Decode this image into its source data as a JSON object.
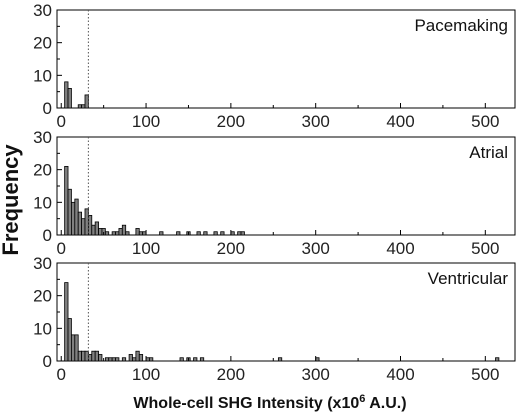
{
  "chart_data": {
    "type": "bar",
    "ylabel": "Frequency",
    "xlabel_text": "Whole-cell SHG Intensity (x10",
    "xlabel_superscript": "6",
    "xlabel_suffix": " A.U.)",
    "xlim": [
      -5,
      535
    ],
    "ylim": [
      0,
      30
    ],
    "x_ticks": [
      "0",
      "100",
      "200",
      "300",
      "400",
      "500"
    ],
    "y_ticks": [
      "0",
      "10",
      "20",
      "30"
    ],
    "bin_width": 4,
    "reference_line_x": 32,
    "bar_color": "#808080",
    "panels": [
      {
        "title": "Pacemaking",
        "bins": [
          [
            4,
            8
          ],
          [
            8,
            6
          ],
          [
            20,
            1
          ],
          [
            24,
            1
          ],
          [
            28,
            4
          ]
        ]
      },
      {
        "title": "Atrial",
        "bins": [
          [
            4,
            21
          ],
          [
            8,
            14
          ],
          [
            12,
            10
          ],
          [
            16,
            11
          ],
          [
            20,
            7
          ],
          [
            24,
            5
          ],
          [
            28,
            8
          ],
          [
            32,
            6
          ],
          [
            36,
            3
          ],
          [
            40,
            4
          ],
          [
            44,
            2
          ],
          [
            48,
            2
          ],
          [
            52,
            1
          ],
          [
            60,
            1
          ],
          [
            64,
            1
          ],
          [
            68,
            2
          ],
          [
            72,
            3
          ],
          [
            76,
            1
          ],
          [
            88,
            2
          ],
          [
            92,
            1
          ],
          [
            96,
            1
          ],
          [
            116,
            1
          ],
          [
            136,
            1
          ],
          [
            148,
            1
          ],
          [
            160,
            1
          ],
          [
            168,
            1
          ],
          [
            180,
            1
          ],
          [
            188,
            1
          ],
          [
            200,
            1
          ],
          [
            208,
            1
          ],
          [
            212,
            1
          ]
        ]
      },
      {
        "title": "Ventricular",
        "bins": [
          [
            4,
            24
          ],
          [
            8,
            13
          ],
          [
            12,
            8
          ],
          [
            16,
            8
          ],
          [
            20,
            3
          ],
          [
            24,
            3
          ],
          [
            28,
            3
          ],
          [
            32,
            2
          ],
          [
            36,
            3
          ],
          [
            40,
            3
          ],
          [
            44,
            2
          ],
          [
            52,
            1
          ],
          [
            56,
            1
          ],
          [
            60,
            1
          ],
          [
            64,
            1
          ],
          [
            72,
            1
          ],
          [
            80,
            2
          ],
          [
            84,
            1
          ],
          [
            88,
            3
          ],
          [
            92,
            2
          ],
          [
            100,
            1
          ],
          [
            104,
            1
          ],
          [
            140,
            1
          ],
          [
            148,
            1
          ],
          [
            156,
            1
          ],
          [
            164,
            1
          ],
          [
            256,
            1
          ],
          [
            300,
            1
          ],
          [
            512,
            1
          ]
        ]
      }
    ]
  }
}
